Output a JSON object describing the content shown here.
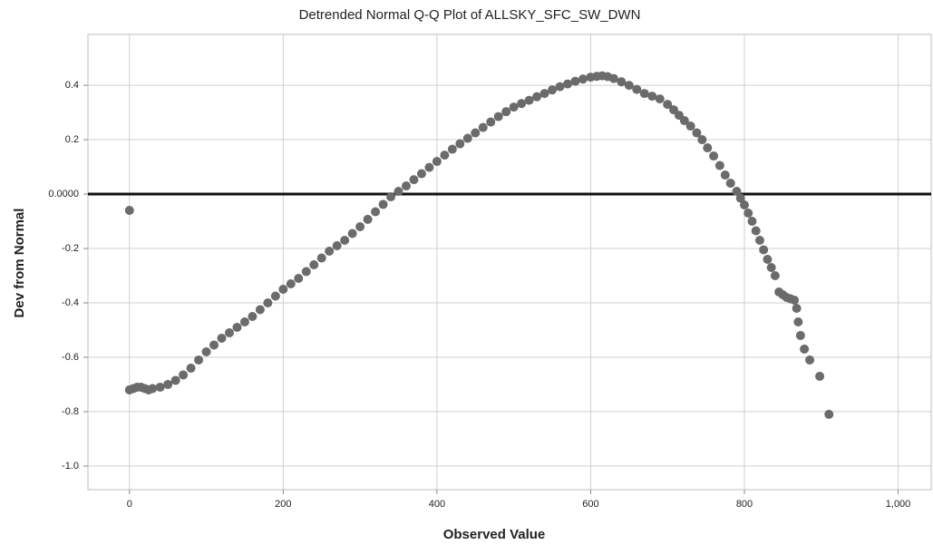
{
  "chart_data": {
    "type": "scatter",
    "title": "Detrended Normal Q-Q Plot of ALLSKY_SFC_SW_DWN",
    "x_label": "Observed Value",
    "y_label": "Dev from Normal",
    "color": "#6b6b6b",
    "grid": true,
    "reference_line": 0,
    "xlim": [
      -54,
      1043
    ],
    "ylim": [
      -1.087,
      0.587
    ],
    "xticks": [
      0,
      200,
      400,
      600,
      800,
      {
        "value": 1000,
        "label": "1,000"
      }
    ],
    "yticks": [
      0.4,
      0.2,
      {
        "value": 0,
        "label": "0.0000"
      },
      -0.2,
      -0.4,
      -0.6,
      -0.8,
      {
        "value": -1,
        "label": "-1.0"
      }
    ],
    "x": [
      0,
      0,
      5,
      10,
      15,
      20,
      25,
      30,
      40,
      50,
      60,
      70,
      80,
      90,
      100,
      110,
      120,
      130,
      140,
      150,
      160,
      170,
      180,
      190,
      200,
      210,
      220,
      230,
      240,
      250,
      260,
      270,
      280,
      290,
      300,
      310,
      320,
      330,
      340,
      350,
      360,
      370,
      380,
      390,
      400,
      410,
      420,
      430,
      440,
      450,
      460,
      470,
      480,
      490,
      500,
      510,
      520,
      530,
      540,
      550,
      560,
      570,
      580,
      590,
      600,
      608,
      615,
      622,
      630,
      640,
      650,
      660,
      670,
      680,
      690,
      700,
      708,
      715,
      722,
      730,
      738,
      745,
      752,
      760,
      768,
      775,
      782,
      790,
      795,
      800,
      805,
      810,
      815,
      820,
      825,
      830,
      835,
      840,
      845,
      850,
      855,
      860,
      865,
      868,
      870,
      873,
      878,
      885,
      898,
      910
    ],
    "values": [
      -0.06,
      -0.72,
      -0.715,
      -0.71,
      -0.71,
      -0.715,
      -0.72,
      -0.715,
      -0.71,
      -0.7,
      -0.685,
      -0.665,
      -0.64,
      -0.61,
      -0.58,
      -0.555,
      -0.53,
      -0.51,
      -0.49,
      -0.47,
      -0.45,
      -0.425,
      -0.4,
      -0.375,
      -0.35,
      -0.33,
      -0.31,
      -0.285,
      -0.26,
      -0.235,
      -0.21,
      -0.19,
      -0.17,
      -0.145,
      -0.12,
      -0.093,
      -0.065,
      -0.038,
      -0.01,
      0.01,
      0.03,
      0.053,
      0.075,
      0.098,
      0.12,
      0.143,
      0.165,
      0.185,
      0.205,
      0.225,
      0.245,
      0.265,
      0.285,
      0.303,
      0.32,
      0.333,
      0.345,
      0.358,
      0.37,
      0.383,
      0.395,
      0.405,
      0.415,
      0.423,
      0.43,
      0.433,
      0.435,
      0.432,
      0.425,
      0.413,
      0.4,
      0.385,
      0.37,
      0.36,
      0.35,
      0.33,
      0.31,
      0.29,
      0.27,
      0.25,
      0.225,
      0.2,
      0.17,
      0.14,
      0.105,
      0.07,
      0.04,
      0.01,
      -0.015,
      -0.04,
      -0.07,
      -0.1,
      -0.135,
      -0.17,
      -0.205,
      -0.24,
      -0.27,
      -0.3,
      -0.36,
      -0.37,
      -0.38,
      -0.385,
      -0.39,
      -0.42,
      -0.47,
      -0.52,
      -0.57,
      -0.61,
      -0.67,
      -0.81
    ]
  }
}
